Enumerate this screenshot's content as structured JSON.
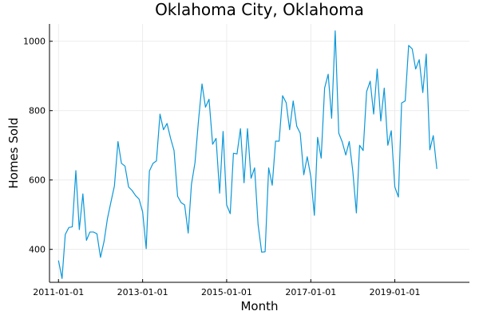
{
  "chart_data": {
    "type": "line",
    "title": "Oklahoma City, Oklahoma",
    "xlabel": "Month",
    "ylabel": "Homes Sold",
    "ylim": [
      305,
      1050
    ],
    "xlim": [
      "2010-10-15",
      "2020-10-10"
    ],
    "grid": true,
    "legend": false,
    "x_ticks": [
      "2011-01-01",
      "2013-01-01",
      "2015-01-01",
      "2017-01-01",
      "2019-01-01"
    ],
    "y_ticks": [
      400,
      600,
      800,
      1000
    ],
    "x_start": "2011-01-01",
    "x_step": "month",
    "color": "#0a97d9",
    "series": [
      {
        "values": [
          368,
          316,
          443,
          463,
          465,
          627,
          457,
          560,
          426,
          450,
          450,
          445,
          377,
          423,
          488,
          537,
          583,
          711,
          648,
          640,
          580,
          570,
          555,
          545,
          508,
          402,
          626,
          648,
          655,
          790,
          745,
          763,
          720,
          685,
          553,
          535,
          528,
          447,
          587,
          650,
          770,
          877,
          810,
          833,
          703,
          720,
          562,
          740,
          528,
          503,
          677,
          675,
          748,
          592,
          748,
          605,
          635,
          472,
          392,
          393,
          635,
          585,
          712,
          712,
          843,
          823,
          745,
          828,
          755,
          735,
          615,
          667,
          610,
          498,
          723,
          663,
          865,
          905,
          778,
          1030,
          735,
          710,
          672,
          711,
          625,
          505,
          700,
          685,
          855,
          885,
          790,
          920,
          770,
          865,
          700,
          742,
          580,
          551,
          822,
          828,
          988,
          978,
          920,
          947,
          852,
          963,
          687,
          728,
          632
        ]
      }
    ]
  }
}
